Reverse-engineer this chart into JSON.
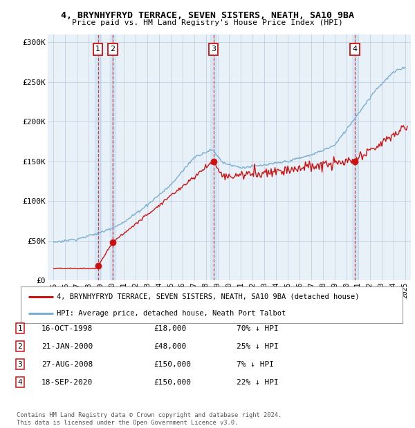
{
  "title": "4, BRYNHYFRYD TERRACE, SEVEN SISTERS, NEATH, SA10 9BA",
  "subtitle": "Price paid vs. HM Land Registry's House Price Index (HPI)",
  "hpi_color": "#7aadd4",
  "price_color": "#cc1111",
  "sale_color": "#cc1111",
  "vline_color": "#cc2222",
  "bg_color": "#e8f0f8",
  "shade_color": "#d0e4f4",
  "legend_label_red": "4, BRYNHYFRYD TERRACE, SEVEN SISTERS, NEATH, SA10 9BA (detached house)",
  "legend_label_blue": "HPI: Average price, detached house, Neath Port Talbot",
  "transactions": [
    {
      "num": 1,
      "date_x": 1998.79,
      "price": 18000,
      "label": "1",
      "date_str": "16-OCT-1998",
      "pct": "70% ↓ HPI"
    },
    {
      "num": 2,
      "date_x": 2000.06,
      "price": 48000,
      "label": "2",
      "date_str": "21-JAN-2000",
      "pct": "25% ↓ HPI"
    },
    {
      "num": 3,
      "date_x": 2008.65,
      "price": 150000,
      "label": "3",
      "date_str": "27-AUG-2008",
      "pct": "7% ↓ HPI"
    },
    {
      "num": 4,
      "date_x": 2020.72,
      "price": 150000,
      "label": "4",
      "date_str": "18-SEP-2020",
      "pct": "22% ↓ HPI"
    }
  ],
  "ylim": [
    0,
    310000
  ],
  "xlim": [
    1994.5,
    2025.5
  ],
  "yticks": [
    0,
    50000,
    100000,
    150000,
    200000,
    250000,
    300000
  ],
  "ytick_labels": [
    "£0",
    "£50K",
    "£100K",
    "£150K",
    "£200K",
    "£250K",
    "£300K"
  ],
  "xticks": [
    1995,
    1996,
    1997,
    1998,
    1999,
    2000,
    2001,
    2002,
    2003,
    2004,
    2005,
    2006,
    2007,
    2008,
    2009,
    2010,
    2011,
    2012,
    2013,
    2014,
    2015,
    2016,
    2017,
    2018,
    2019,
    2020,
    2021,
    2022,
    2023,
    2024,
    2025
  ],
  "footnote": "Contains HM Land Registry data © Crown copyright and database right 2024.\nThis data is licensed under the Open Government Licence v3.0."
}
